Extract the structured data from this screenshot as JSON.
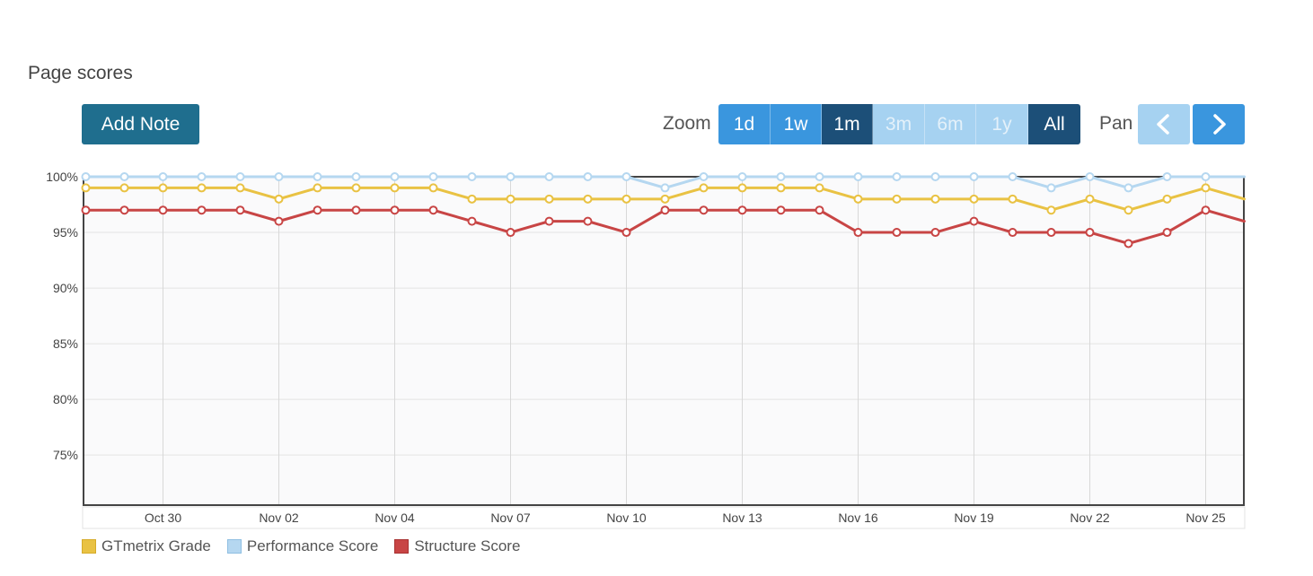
{
  "header": {
    "title": "Page scores",
    "add_note_label": "Add Note"
  },
  "zoom": {
    "label": "Zoom",
    "options": [
      {
        "label": "1d",
        "state": "active"
      },
      {
        "label": "1w",
        "state": "active"
      },
      {
        "label": "1m",
        "state": "selected"
      },
      {
        "label": "3m",
        "state": "disabled"
      },
      {
        "label": "6m",
        "state": "disabled"
      },
      {
        "label": "1y",
        "state": "disabled"
      },
      {
        "label": "All",
        "state": "selected"
      }
    ]
  },
  "pan": {
    "label": "Pan",
    "prev_icon": "chevron-left-icon",
    "next_icon": "chevron-right-icon"
  },
  "chart_data": {
    "type": "line",
    "title": "",
    "x_ticks": [
      "Oct 30",
      "Nov 02",
      "Nov 04",
      "Nov 07",
      "Nov 10",
      "Nov 13",
      "Nov 16",
      "Nov 19",
      "Nov 22",
      "Nov 25"
    ],
    "y_ticks": [
      "100%",
      "95%",
      "90%",
      "85%",
      "80%",
      "75%"
    ],
    "ylim": [
      70.5,
      100
    ],
    "grid": true,
    "legend_placement": "bottom-left",
    "series": [
      {
        "name": "Performance Score",
        "color": "#b5d7f0",
        "values": [
          100,
          100,
          100,
          100,
          100,
          100,
          100,
          100,
          100,
          100,
          100,
          100,
          100,
          100,
          100,
          99,
          100,
          100,
          100,
          100,
          100,
          100,
          100,
          100,
          100,
          99,
          100,
          99,
          100,
          100,
          100
        ]
      },
      {
        "name": "GTmetrix Grade",
        "color": "#e9c243",
        "values": [
          99,
          99,
          99,
          99,
          99,
          98,
          99,
          99,
          99,
          99,
          98,
          98,
          98,
          98,
          98,
          98,
          99,
          99,
          99,
          99,
          98,
          98,
          98,
          98,
          98,
          97,
          98,
          97,
          98,
          99,
          98
        ]
      },
      {
        "name": "Structure Score",
        "color": "#c84545",
        "values": [
          97,
          97,
          97,
          97,
          97,
          96,
          97,
          97,
          97,
          97,
          96,
          95,
          96,
          96,
          95,
          97,
          97,
          97,
          97,
          97,
          95,
          95,
          95,
          96,
          95,
          95,
          95,
          94,
          95,
          97,
          96
        ]
      }
    ]
  }
}
